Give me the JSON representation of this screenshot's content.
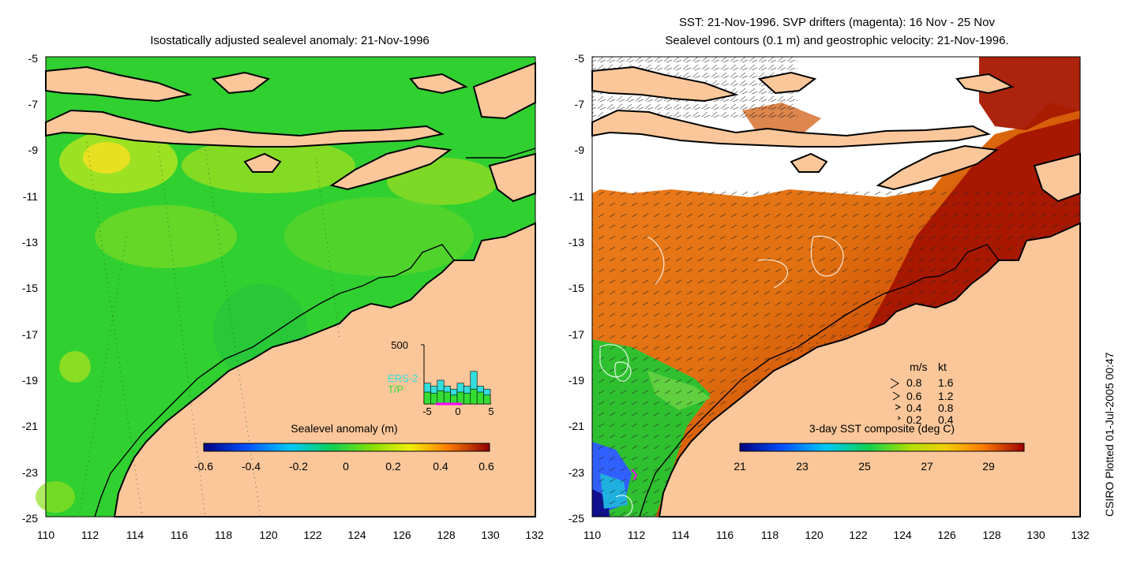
{
  "left_panel": {
    "title": "Isostatically adjusted sealevel anomaly: 21-Nov-1996",
    "colorbar": {
      "label": "Sealevel anomaly (m)",
      "ticks": [
        "-0.6",
        "-0.4",
        "-0.2",
        "0",
        "0.2",
        "0.4",
        "0.6"
      ]
    },
    "histogram": {
      "ymax_label": "500",
      "series": [
        "ERS-2",
        "T/P"
      ],
      "series_colors": [
        "#33dddd",
        "#33dd33"
      ],
      "x_ticks": [
        "-5",
        "0",
        "5"
      ],
      "bins_ers2": [
        0.35,
        0.3,
        0.4,
        0.3,
        0.25,
        0.35,
        0.3,
        0.55,
        0.3,
        0.25
      ],
      "bins_tp": [
        0.2,
        0.18,
        0.22,
        0.2,
        0.15,
        0.2,
        0.18,
        0.25,
        0.2,
        0.15
      ]
    }
  },
  "right_panel": {
    "title_line1": "SST: 21-Nov-1996. SVP drifters (magenta): 16 Nov - 25 Nov",
    "title_line2": "Sealevel contours (0.1 m) and geostrophic velocity: 21-Nov-1996.",
    "colorbar": {
      "label": "3-day SST composite (deg C)",
      "ticks": [
        "21",
        "23",
        "25",
        "27",
        "29"
      ]
    },
    "velocity_legend": {
      "header_ms": "m/s",
      "header_kt": "kt",
      "rows": [
        {
          "ms": "0.8",
          "kt": "1.6"
        },
        {
          "ms": "0.6",
          "kt": "1.2"
        },
        {
          "ms": "0.4",
          "kt": "0.8"
        },
        {
          "ms": "0.2",
          "kt": "0.4"
        }
      ]
    }
  },
  "axes": {
    "y_ticks": [
      "-5",
      "-7",
      "-9",
      "-11",
      "-13",
      "-15",
      "-17",
      "-19",
      "-21",
      "-23",
      "-25"
    ],
    "x_ticks": [
      "110",
      "112",
      "114",
      "116",
      "118",
      "120",
      "122",
      "124",
      "126",
      "128",
      "130",
      "132"
    ]
  },
  "credit": "CSIRO Plotted 01-Jul-2005 00:47",
  "colors": {
    "land": "#fbc79a",
    "ocean_green": "#2fd42f",
    "sst_warm": "#a81800",
    "sst_orange": "#e58a1a"
  }
}
